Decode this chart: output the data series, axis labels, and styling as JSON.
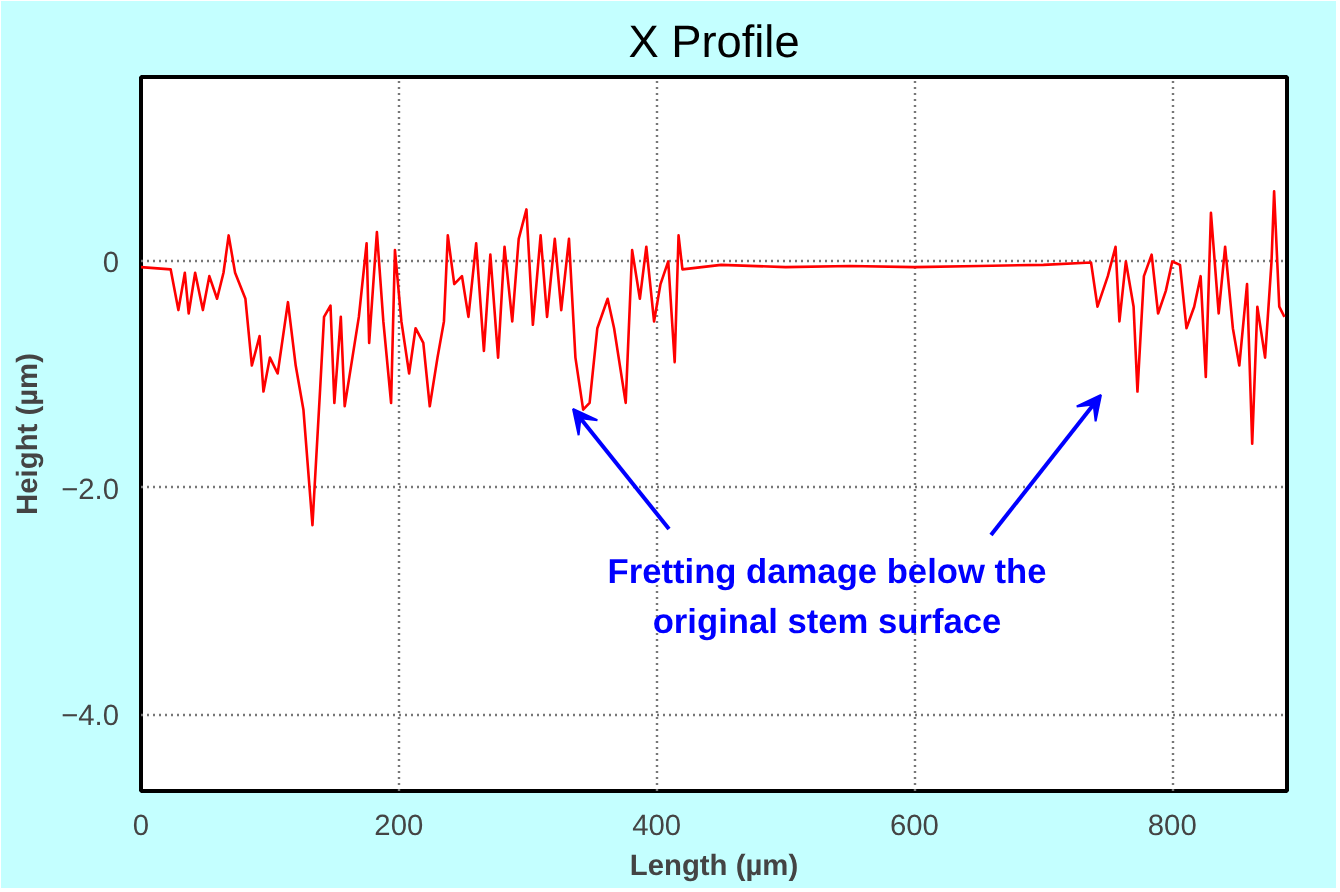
{
  "chart_data": {
    "type": "line",
    "title": "X Profile",
    "xlabel": "Length (µm)",
    "ylabel": "Height (µm)",
    "xlim": [
      0,
      889
    ],
    "ylim": [
      -4.68,
      1.63
    ],
    "xticks": [
      0,
      200,
      400,
      600,
      800
    ],
    "yticks": [
      0,
      {
        "value": -2.0,
        "label": "−2.0"
      },
      {
        "value": -4.0,
        "label": "−4.0"
      }
    ],
    "grid": true,
    "marker": "none",
    "line_style": "solid",
    "annotations": [
      "Fretting damage below the\noriginal stem surface"
    ],
    "series": [
      {
        "color": "#ff0000",
        "x": [
          0,
          23,
          29,
          34,
          37,
          42,
          48,
          53,
          59,
          64,
          68,
          73,
          81,
          86,
          92,
          95,
          100,
          106,
          114,
          120,
          126,
          133,
          139,
          142,
          147,
          150,
          155,
          158,
          164,
          169,
          175,
          177,
          183,
          188,
          194,
          197,
          202,
          208,
          213,
          219,
          224,
          230,
          235,
          238,
          243,
          249,
          254,
          260,
          266,
          271,
          277,
          282,
          288,
          293,
          299,
          304,
          310,
          315,
          321,
          326,
          332,
          337,
          343,
          348,
          354,
          362,
          367,
          376,
          381,
          387,
          392,
          398,
          403,
          409,
          414,
          417,
          420,
          450,
          500,
          550,
          600,
          650,
          700,
          737,
          742,
          750,
          756,
          759,
          764,
          770,
          773,
          778,
          784,
          789,
          795,
          800,
          806,
          811,
          817,
          822,
          826,
          830,
          836,
          841,
          847,
          852,
          858,
          862,
          866,
          872,
          877,
          879,
          883,
          887
        ],
        "values": [
          -0.05,
          -0.07,
          -0.43,
          -0.1,
          -0.46,
          -0.1,
          -0.43,
          -0.13,
          -0.33,
          -0.1,
          0.23,
          -0.1,
          -0.33,
          -0.92,
          -0.66,
          -1.15,
          -0.85,
          -0.99,
          -0.36,
          -0.92,
          -1.31,
          -2.33,
          -1.12,
          -0.49,
          -0.39,
          -1.25,
          -0.49,
          -1.28,
          -0.85,
          -0.49,
          0.16,
          -0.72,
          0.26,
          -0.53,
          -1.25,
          0.1,
          -0.53,
          -0.99,
          -0.59,
          -0.72,
          -1.28,
          -0.85,
          -0.53,
          0.23,
          -0.2,
          -0.13,
          -0.49,
          0.16,
          -0.79,
          0.06,
          -0.85,
          0.13,
          -0.53,
          0.2,
          0.46,
          -0.56,
          0.23,
          -0.49,
          0.2,
          -0.43,
          0.2,
          -0.85,
          -1.31,
          -1.25,
          -0.59,
          -0.33,
          -0.59,
          -1.25,
          0.1,
          -0.33,
          0.13,
          -0.53,
          -0.2,
          0.0,
          -0.89,
          0.23,
          -0.07,
          -0.03,
          -0.05,
          -0.04,
          -0.05,
          -0.04,
          -0.03,
          -0.01,
          -0.4,
          -0.13,
          0.13,
          -0.53,
          0.0,
          -0.4,
          -1.15,
          -0.13,
          0.06,
          -0.46,
          -0.26,
          0.0,
          -0.03,
          -0.59,
          -0.4,
          -0.13,
          -1.02,
          0.43,
          -0.46,
          0.13,
          -0.59,
          -0.92,
          -0.2,
          -1.61,
          -0.4,
          -0.85,
          0.0,
          0.62,
          -0.4,
          -0.49
        ]
      }
    ]
  }
}
